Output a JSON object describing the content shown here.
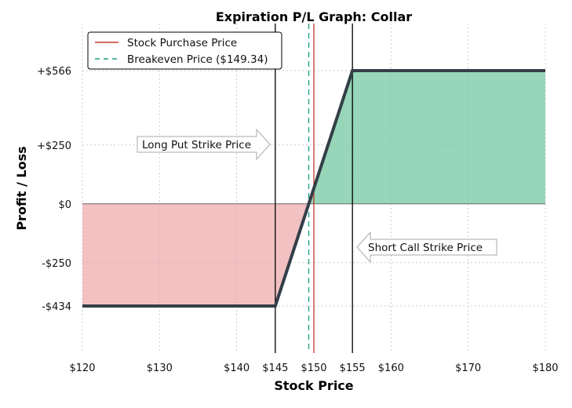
{
  "chart_data": {
    "type": "line",
    "title": "Expiration P/L Graph: Collar",
    "xlabel": "Stock Price",
    "ylabel": "Profit / Loss",
    "xlim": [
      120,
      180
    ],
    "ylim": [
      -634,
      766
    ],
    "grid": true,
    "legend_placement": "top-left",
    "x_ticks": [
      {
        "value": 120,
        "label": "$120"
      },
      {
        "value": 130,
        "label": "$130"
      },
      {
        "value": 140,
        "label": "$140"
      },
      {
        "value": 145,
        "label": "$145"
      },
      {
        "value": 150,
        "label": "$150"
      },
      {
        "value": 155,
        "label": "$155"
      },
      {
        "value": 160,
        "label": "$160"
      },
      {
        "value": 170,
        "label": "$170"
      },
      {
        "value": 180,
        "label": "$180"
      }
    ],
    "y_ticks": [
      {
        "value": 566,
        "label": "+$566"
      },
      {
        "value": 250,
        "label": "+$250"
      },
      {
        "value": 0,
        "label": "$0"
      },
      {
        "value": -250,
        "label": "-$250"
      },
      {
        "value": -434,
        "label": "-$434"
      }
    ],
    "series": [
      {
        "x": [
          120,
          145,
          155,
          180
        ],
        "y": [
          -434,
          -434,
          566,
          566
        ]
      }
    ],
    "vertical_lines": [
      {
        "name": "Stock Purchase Price",
        "x": 150,
        "color": "#c0392b",
        "style": "solid"
      },
      {
        "name": "Breakeven Price ($149.34)",
        "x": 149.34,
        "color": "#16a085",
        "style": "dashed"
      },
      {
        "x": 145,
        "color": "#000000",
        "style": "solid"
      },
      {
        "x": 155,
        "color": "#000000",
        "style": "solid"
      }
    ],
    "legend": [
      {
        "label": "Stock Purchase Price",
        "color": "#c0392b",
        "style": "solid"
      },
      {
        "label": "Breakeven Price ($149.34)",
        "color": "#16a085",
        "style": "dashed"
      }
    ],
    "annotations": [
      {
        "text": "Long Put Strike Price",
        "points_to_x": 145,
        "y": 160,
        "arrow": "right"
      },
      {
        "text": "Short Call Strike Price",
        "points_to_x": 155,
        "y": -160,
        "arrow": "left"
      }
    ],
    "colors": {
      "pnl_line": "#333f48",
      "profit_fill": "#7dcca6",
      "loss_fill": "#eda7a8",
      "zero_line": "#6b6b6b",
      "grid": "#cccccc"
    }
  }
}
